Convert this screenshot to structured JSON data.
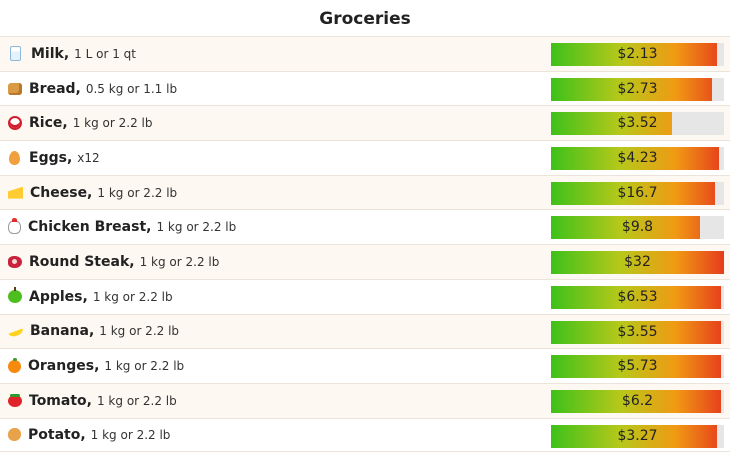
{
  "title": "Groceries",
  "colors": {
    "gradient": [
      "#3dc11a",
      "#b6c81a",
      "#f09a14",
      "#e63c1c"
    ],
    "track": "#e6e6e6"
  },
  "items": [
    {
      "icon": "milk-icon",
      "icon_class": "i-milk",
      "name": "Milk,",
      "unit": "1 L or 1 qt",
      "price": "$2.13",
      "fill": 0.96
    },
    {
      "icon": "bread-icon",
      "icon_class": "i-bread",
      "name": "Bread,",
      "unit": "0.5 kg or 1.1 lb",
      "price": "$2.73",
      "fill": 0.93
    },
    {
      "icon": "rice-icon",
      "icon_class": "i-rice",
      "name": "Rice,",
      "unit": "1 kg or 2.2 lb",
      "price": "$3.52",
      "fill": 0.7
    },
    {
      "icon": "egg-icon",
      "icon_class": "i-eggs",
      "name": "Eggs,",
      "unit": "x12",
      "price": "$4.23",
      "fill": 0.97
    },
    {
      "icon": "cheese-icon",
      "icon_class": "i-cheese",
      "name": "Cheese,",
      "unit": "1 kg or 2.2 lb",
      "price": "$16.7",
      "fill": 0.95
    },
    {
      "icon": "chicken-icon",
      "icon_class": "i-chicken",
      "name": "Chicken Breast,",
      "unit": "1 kg or 2.2 lb",
      "price": "$9.8",
      "fill": 0.86
    },
    {
      "icon": "steak-icon",
      "icon_class": "i-steak",
      "name": "Round Steak,",
      "unit": "1 kg or 2.2 lb",
      "price": "$32",
      "fill": 1.0
    },
    {
      "icon": "apple-icon",
      "icon_class": "i-apples",
      "name": "Apples,",
      "unit": "1 kg or 2.2 lb",
      "price": "$6.53",
      "fill": 0.98
    },
    {
      "icon": "banana-icon",
      "icon_class": "i-banana",
      "name": "Banana,",
      "unit": "1 kg or 2.2 lb",
      "price": "$3.55",
      "fill": 0.98
    },
    {
      "icon": "orange-icon",
      "icon_class": "i-oranges",
      "name": "Oranges,",
      "unit": "1 kg or 2.2 lb",
      "price": "$5.73",
      "fill": 0.98
    },
    {
      "icon": "tomato-icon",
      "icon_class": "i-tomato",
      "name": "Tomato,",
      "unit": "1 kg or 2.2 lb",
      "price": "$6.2",
      "fill": 0.98
    },
    {
      "icon": "potato-icon",
      "icon_class": "i-potato",
      "name": "Potato,",
      "unit": "1 kg or 2.2 lb",
      "price": "$3.27",
      "fill": 0.96
    }
  ]
}
